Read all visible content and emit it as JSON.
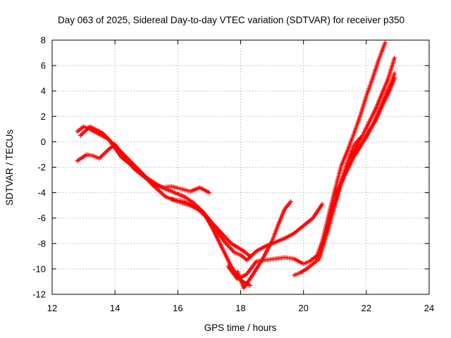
{
  "chart_data": {
    "type": "scatter",
    "title": "Day 063 of 2025, Sidereal Day-to-day VTEC variation (SDTVAR) for receiver p350",
    "xlabel": "GPS time / hours",
    "ylabel": "SDTVAR / TECUs",
    "xlim": [
      12,
      24
    ],
    "ylim": [
      -12,
      8
    ],
    "x_ticks": [
      "12",
      "14",
      "16",
      "18",
      "20",
      "22",
      "24"
    ],
    "y_ticks": [
      "-12",
      "-10",
      "-8",
      "-6",
      "-4",
      "-2",
      "0",
      "2",
      "4",
      "6",
      "8"
    ],
    "grid": true,
    "marker": "plus",
    "color": "#ff0000",
    "series": [
      {
        "x": [
          12.8,
          13.0,
          13.2,
          13.5,
          13.8,
          14.0,
          14.2,
          14.5,
          14.8,
          15.0,
          15.3,
          15.6,
          15.9,
          16.2,
          16.5,
          16.8,
          17.1,
          17.4,
          17.7,
          17.9,
          18.1,
          18.3
        ],
        "y": [
          0.8,
          1.2,
          1.0,
          0.6,
          0.2,
          -0.5,
          -1.2,
          -1.8,
          -2.3,
          -2.8,
          -3.3,
          -3.7,
          -4.0,
          -4.3,
          -4.8,
          -5.5,
          -6.4,
          -7.2,
          -8.0,
          -8.3,
          -8.6,
          -9.0
        ]
      },
      {
        "x": [
          12.8,
          13.1,
          13.3,
          13.5,
          13.8,
          14.0,
          14.3,
          14.6,
          14.9,
          15.2,
          15.5,
          15.8,
          16.1,
          16.4,
          16.7,
          17.0
        ],
        "y": [
          -1.5,
          -1.0,
          -1.1,
          -1.3,
          -0.6,
          -0.2,
          -1.2,
          -2.1,
          -2.7,
          -3.3,
          -3.6,
          -3.5,
          -3.7,
          -3.9,
          -3.6,
          -4.0
        ]
      },
      {
        "x": [
          12.9,
          13.2,
          13.6,
          14.0,
          14.4,
          14.8,
          15.2,
          15.6,
          16.0,
          16.4,
          16.8,
          17.1,
          17.4,
          17.7,
          18.0,
          18.3
        ],
        "y": [
          0.5,
          1.2,
          0.7,
          -0.3,
          -1.3,
          -2.3,
          -3.4,
          -4.3,
          -4.7,
          -5.0,
          -5.5,
          -6.8,
          -8.3,
          -9.8,
          -10.9,
          -11.3
        ]
      },
      {
        "x": [
          15.8,
          16.2,
          16.6,
          16.9,
          17.2,
          17.5,
          17.8,
          18.0,
          18.2,
          18.5,
          18.8,
          19.1,
          19.4,
          19.7,
          20.0,
          20.3,
          20.6
        ],
        "y": [
          -4.5,
          -4.7,
          -5.2,
          -5.9,
          -6.9,
          -7.9,
          -8.7,
          -8.9,
          -9.3,
          -8.6,
          -8.2,
          -7.9,
          -7.6,
          -7.2,
          -6.6,
          -6.0,
          -4.9
        ]
      },
      {
        "x": [
          17.6,
          17.9,
          18.2,
          18.5,
          18.8,
          19.1,
          19.4,
          19.7,
          20.0,
          20.2,
          20.4
        ],
        "y": [
          -9.8,
          -10.8,
          -10.4,
          -9.4,
          -9.3,
          -9.2,
          -9.1,
          -9.2,
          -9.6,
          -9.4,
          -9.0
        ]
      },
      {
        "x": [
          17.9,
          18.1,
          18.4,
          18.7,
          19.0,
          19.2,
          19.4,
          19.6
        ],
        "y": [
          -10.2,
          -11.5,
          -10.4,
          -9.2,
          -7.8,
          -6.5,
          -5.3,
          -4.7
        ]
      },
      {
        "x": [
          19.7,
          19.9,
          20.1,
          20.3,
          20.5,
          20.6,
          20.8,
          21.0,
          21.2,
          21.4,
          21.6,
          21.8
        ],
        "y": [
          -10.5,
          -10.3,
          -10.0,
          -9.6,
          -9.2,
          -8.4,
          -6.8,
          -5.0,
          -3.2,
          -1.6,
          -0.3,
          0.3
        ]
      },
      {
        "x": [
          20.4,
          20.6,
          20.8,
          21.0,
          21.2,
          21.4,
          21.6,
          21.8,
          22.0,
          22.2,
          22.4,
          22.6
        ],
        "y": [
          -9.2,
          -7.8,
          -5.8,
          -3.8,
          -1.9,
          -0.7,
          0.6,
          2.0,
          3.6,
          5.0,
          6.5,
          7.8
        ]
      },
      {
        "x": [
          20.5,
          20.7,
          20.9,
          21.1,
          21.3,
          21.5,
          21.7,
          21.9,
          22.1,
          22.3,
          22.5,
          22.7,
          22.9
        ],
        "y": [
          -9.0,
          -7.2,
          -5.5,
          -4.0,
          -2.6,
          -1.5,
          -0.3,
          0.6,
          1.6,
          2.6,
          3.8,
          5.0,
          6.6
        ]
      },
      {
        "x": [
          21.0,
          21.2,
          21.4,
          21.6,
          21.8,
          22.0,
          22.2,
          22.4,
          22.6,
          22.8,
          22.9
        ],
        "y": [
          -4.2,
          -3.2,
          -2.2,
          -1.2,
          -0.4,
          0.4,
          1.3,
          2.4,
          3.6,
          4.7,
          5.4
        ]
      },
      {
        "x": [
          21.5,
          21.7,
          21.9,
          22.1,
          22.3,
          22.5,
          22.7,
          22.9
        ],
        "y": [
          -1.2,
          -0.6,
          0.0,
          0.9,
          1.7,
          2.8,
          3.8,
          5.0
        ]
      }
    ]
  }
}
